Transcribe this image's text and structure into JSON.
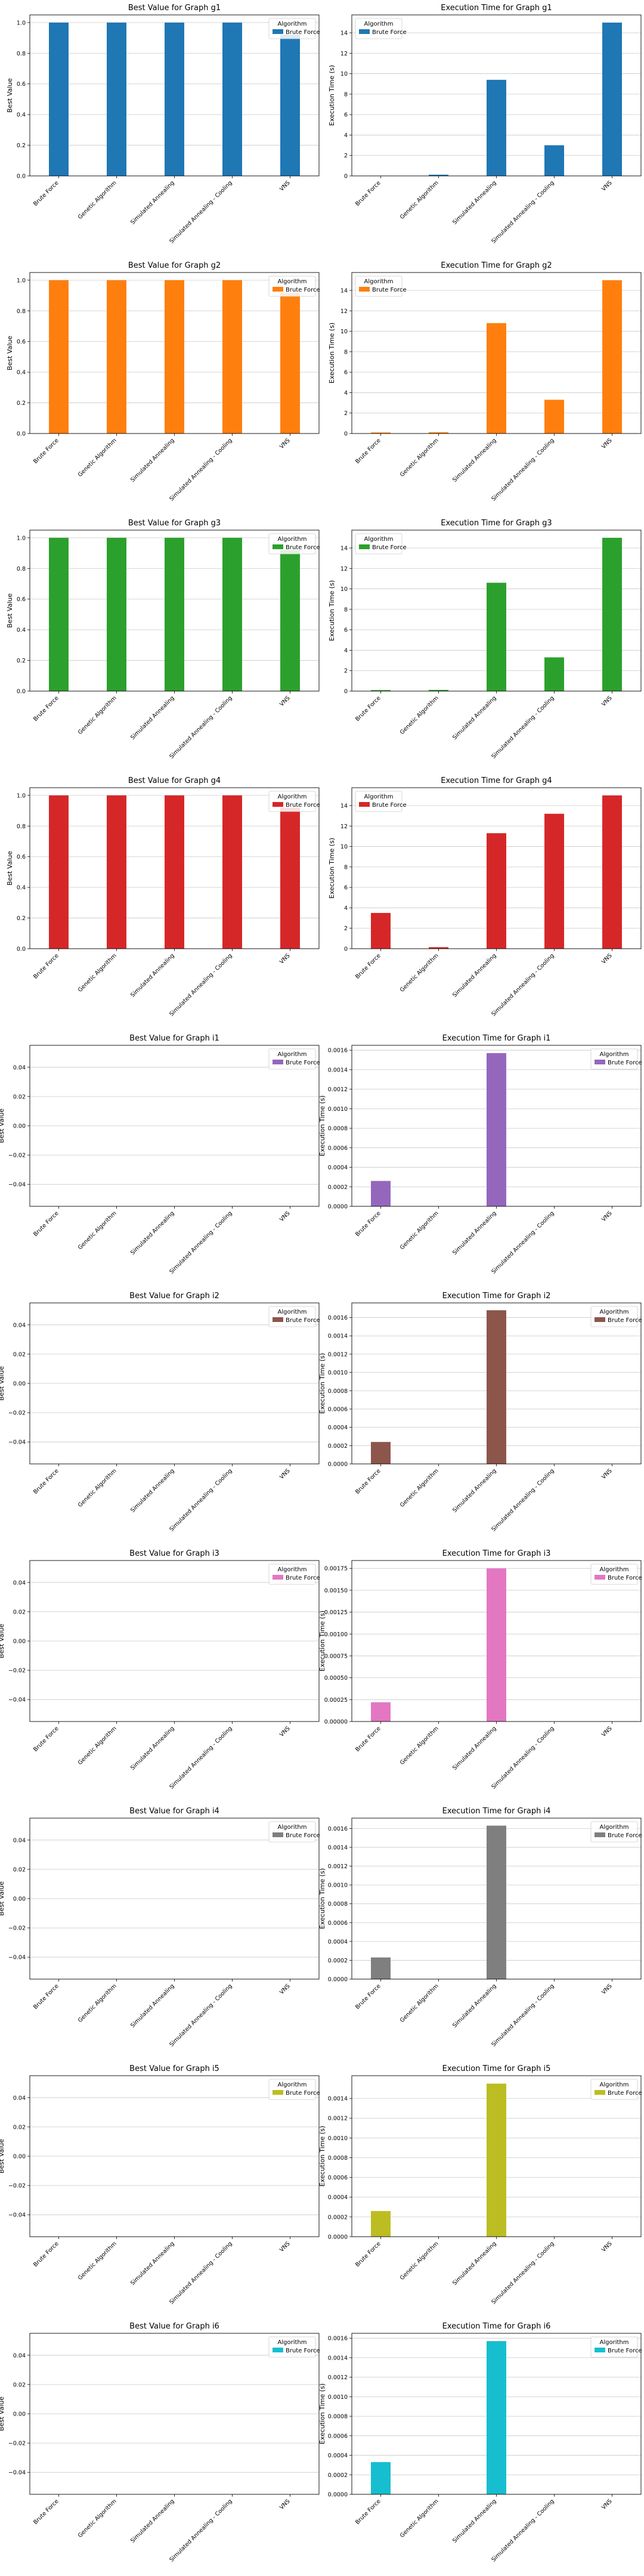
{
  "legend_title": "Algorithm",
  "chart_data": [
    {
      "type": "bar",
      "title": "Best Value for Graph g1",
      "xlabel": "",
      "ylabel": "Best Value",
      "categories": [
        "Brute Force",
        "Genetic Algorithm",
        "Simulated Annealing",
        "Simulated Annealing - Cooling",
        "VNS"
      ],
      "values": [
        1.0,
        1.0,
        1.0,
        1.0,
        0.92
      ],
      "ylim": [
        0,
        1.05
      ],
      "yticks": [
        "0.0",
        "0.2",
        "0.4",
        "0.6",
        "0.8",
        "1.0"
      ],
      "color": "#1f77b4",
      "legend": {
        "title": "Algorithm",
        "entries": [
          "Brute Force"
        ],
        "position": "top-right"
      },
      "grid": true
    },
    {
      "type": "bar",
      "title": "Execution Time for Graph g1",
      "xlabel": "",
      "ylabel": "Execution Time (s)",
      "categories": [
        "Brute Force",
        "Genetic Algorithm",
        "Simulated Annealing",
        "Simulated Annealing - Cooling",
        "VNS"
      ],
      "values": [
        0.02,
        0.12,
        9.4,
        3.0,
        15.0
      ],
      "ylim": [
        0,
        15.75
      ],
      "yticks": [
        "0",
        "2",
        "4",
        "6",
        "8",
        "10",
        "12",
        "14"
      ],
      "color": "#1f77b4",
      "legend": {
        "title": "Algorithm",
        "entries": [
          "Brute Force"
        ],
        "position": "top-left"
      },
      "grid": true
    },
    {
      "type": "bar",
      "title": "Best Value for Graph g2",
      "xlabel": "",
      "ylabel": "Best Value",
      "categories": [
        "Brute Force",
        "Genetic Algorithm",
        "Simulated Annealing",
        "Simulated Annealing - Cooling",
        "VNS"
      ],
      "values": [
        1.0,
        1.0,
        1.0,
        1.0,
        0.92
      ],
      "ylim": [
        0,
        1.05
      ],
      "yticks": [
        "0.0",
        "0.2",
        "0.4",
        "0.6",
        "0.8",
        "1.0"
      ],
      "color": "#ff7f0e",
      "legend": {
        "title": "Algorithm",
        "entries": [
          "Brute Force"
        ],
        "position": "top-right"
      },
      "grid": true
    },
    {
      "type": "bar",
      "title": "Execution Time for Graph g2",
      "xlabel": "",
      "ylabel": "Execution Time (s)",
      "categories": [
        "Brute Force",
        "Genetic Algorithm",
        "Simulated Annealing",
        "Simulated Annealing - Cooling",
        "VNS"
      ],
      "values": [
        0.1,
        0.12,
        10.8,
        3.3,
        15.0
      ],
      "ylim": [
        0,
        15.75
      ],
      "yticks": [
        "0",
        "2",
        "4",
        "6",
        "8",
        "10",
        "12",
        "14"
      ],
      "color": "#ff7f0e",
      "legend": {
        "title": "Algorithm",
        "entries": [
          "Brute Force"
        ],
        "position": "top-left"
      },
      "grid": true
    },
    {
      "type": "bar",
      "title": "Best Value for Graph g3",
      "xlabel": "",
      "ylabel": "Best Value",
      "categories": [
        "Brute Force",
        "Genetic Algorithm",
        "Simulated Annealing",
        "Simulated Annealing - Cooling",
        "VNS"
      ],
      "values": [
        1.0,
        1.0,
        1.0,
        1.0,
        0.92
      ],
      "ylim": [
        0,
        1.05
      ],
      "yticks": [
        "0.0",
        "0.2",
        "0.4",
        "0.6",
        "0.8",
        "1.0"
      ],
      "color": "#2ca02c",
      "legend": {
        "title": "Algorithm",
        "entries": [
          "Brute Force"
        ],
        "position": "top-right"
      },
      "grid": true
    },
    {
      "type": "bar",
      "title": "Execution Time for Graph g3",
      "xlabel": "",
      "ylabel": "Execution Time (s)",
      "categories": [
        "Brute Force",
        "Genetic Algorithm",
        "Simulated Annealing",
        "Simulated Annealing - Cooling",
        "VNS"
      ],
      "values": [
        0.1,
        0.12,
        10.6,
        3.3,
        15.0
      ],
      "ylim": [
        0,
        15.75
      ],
      "yticks": [
        "0",
        "2",
        "4",
        "6",
        "8",
        "10",
        "12",
        "14"
      ],
      "color": "#2ca02c",
      "legend": {
        "title": "Algorithm",
        "entries": [
          "Brute Force"
        ],
        "position": "top-left"
      },
      "grid": true
    },
    {
      "type": "bar",
      "title": "Best Value for Graph g4",
      "xlabel": "",
      "ylabel": "Best Value",
      "categories": [
        "Brute Force",
        "Genetic Algorithm",
        "Simulated Annealing",
        "Simulated Annealing - Cooling",
        "VNS"
      ],
      "values": [
        1.0,
        1.0,
        1.0,
        1.0,
        0.92
      ],
      "ylim": [
        0,
        1.05
      ],
      "yticks": [
        "0.0",
        "0.2",
        "0.4",
        "0.6",
        "0.8",
        "1.0"
      ],
      "color": "#d62728",
      "legend": {
        "title": "Algorithm",
        "entries": [
          "Brute Force"
        ],
        "position": "top-right"
      },
      "grid": true
    },
    {
      "type": "bar",
      "title": "Execution Time for Graph g4",
      "xlabel": "",
      "ylabel": "Execution Time (s)",
      "categories": [
        "Brute Force",
        "Genetic Algorithm",
        "Simulated Annealing",
        "Simulated Annealing - Cooling",
        "VNS"
      ],
      "values": [
        3.5,
        0.15,
        11.3,
        13.2,
        15.0
      ],
      "ylim": [
        0,
        15.75
      ],
      "yticks": [
        "0",
        "2",
        "4",
        "6",
        "8",
        "10",
        "12",
        "14"
      ],
      "color": "#d62728",
      "legend": {
        "title": "Algorithm",
        "entries": [
          "Brute Force"
        ],
        "position": "top-left"
      },
      "grid": true
    },
    {
      "type": "bar",
      "title": "Best Value for Graph i1",
      "xlabel": "",
      "ylabel": "Best Value",
      "categories": [
        "Brute Force",
        "Genetic Algorithm",
        "Simulated Annealing",
        "Simulated Annealing - Cooling",
        "VNS"
      ],
      "values": [
        0,
        0,
        0,
        0,
        0
      ],
      "ylim": [
        -0.055,
        0.055
      ],
      "yticks": [
        "−0.04",
        "−0.02",
        "0.00",
        "0.02",
        "0.04"
      ],
      "color": "#9467bd",
      "legend": {
        "title": "Algorithm",
        "entries": [
          "Brute Force"
        ],
        "position": "top-right"
      },
      "grid": true
    },
    {
      "type": "bar",
      "title": "Execution Time for Graph i1",
      "xlabel": "",
      "ylabel": "Execution Time (s)",
      "categories": [
        "Brute Force",
        "Genetic Algorithm",
        "Simulated Annealing",
        "Simulated Annealing - Cooling",
        "VNS"
      ],
      "values": [
        0.00026,
        0,
        0.00157,
        0,
        0
      ],
      "ylim": [
        0,
        0.00165
      ],
      "yticks": [
        "0.0000",
        "0.0002",
        "0.0004",
        "0.0006",
        "0.0008",
        "0.0010",
        "0.0012",
        "0.0014",
        "0.0016"
      ],
      "color": "#9467bd",
      "legend": {
        "title": "Algorithm",
        "entries": [
          "Brute Force"
        ],
        "position": "top-right"
      },
      "grid": true
    },
    {
      "type": "bar",
      "title": "Best Value for Graph i2",
      "xlabel": "",
      "ylabel": "Best Value",
      "categories": [
        "Brute Force",
        "Genetic Algorithm",
        "Simulated Annealing",
        "Simulated Annealing - Cooling",
        "VNS"
      ],
      "values": [
        0,
        0,
        0,
        0,
        0
      ],
      "ylim": [
        -0.055,
        0.055
      ],
      "yticks": [
        "−0.04",
        "−0.02",
        "0.00",
        "0.02",
        "0.04"
      ],
      "color": "#8c564b",
      "legend": {
        "title": "Algorithm",
        "entries": [
          "Brute Force"
        ],
        "position": "top-right"
      },
      "grid": true
    },
    {
      "type": "bar",
      "title": "Execution Time for Graph i2",
      "xlabel": "",
      "ylabel": "Execution Time (s)",
      "categories": [
        "Brute Force",
        "Genetic Algorithm",
        "Simulated Annealing",
        "Simulated Annealing - Cooling",
        "VNS"
      ],
      "values": [
        0.00024,
        0,
        0.00168,
        0,
        0
      ],
      "ylim": [
        0,
        0.00176
      ],
      "yticks": [
        "0.0000",
        "0.0002",
        "0.0004",
        "0.0006",
        "0.0008",
        "0.0010",
        "0.0012",
        "0.0014",
        "0.0016"
      ],
      "color": "#8c564b",
      "legend": {
        "title": "Algorithm",
        "entries": [
          "Brute Force"
        ],
        "position": "top-right"
      },
      "grid": true
    },
    {
      "type": "bar",
      "title": "Best Value for Graph i3",
      "xlabel": "",
      "ylabel": "Best Value",
      "categories": [
        "Brute Force",
        "Genetic Algorithm",
        "Simulated Annealing",
        "Simulated Annealing - Cooling",
        "VNS"
      ],
      "values": [
        0,
        0,
        0,
        0,
        0
      ],
      "ylim": [
        -0.055,
        0.055
      ],
      "yticks": [
        "−0.04",
        "−0.02",
        "0.00",
        "0.02",
        "0.04"
      ],
      "color": "#e377c2",
      "legend": {
        "title": "Algorithm",
        "entries": [
          "Brute Force"
        ],
        "position": "top-right"
      },
      "grid": true
    },
    {
      "type": "bar",
      "title": "Execution Time for Graph i3",
      "xlabel": "",
      "ylabel": "Execution Time (s)",
      "categories": [
        "Brute Force",
        "Genetic Algorithm",
        "Simulated Annealing",
        "Simulated Annealing - Cooling",
        "VNS"
      ],
      "values": [
        0.00022,
        0,
        0.00175,
        0,
        0
      ],
      "ylim": [
        0,
        0.00184
      ],
      "yticks": [
        "0.00000",
        "0.00025",
        "0.00050",
        "0.00075",
        "0.00100",
        "0.00125",
        "0.00150",
        "0.00175"
      ],
      "color": "#e377c2",
      "legend": {
        "title": "Algorithm",
        "entries": [
          "Brute Force"
        ],
        "position": "top-right"
      },
      "grid": true
    },
    {
      "type": "bar",
      "title": "Best Value for Graph i4",
      "xlabel": "",
      "ylabel": "Best Value",
      "categories": [
        "Brute Force",
        "Genetic Algorithm",
        "Simulated Annealing",
        "Simulated Annealing - Cooling",
        "VNS"
      ],
      "values": [
        0,
        0,
        0,
        0,
        0
      ],
      "ylim": [
        -0.055,
        0.055
      ],
      "yticks": [
        "−0.04",
        "−0.02",
        "0.00",
        "0.02",
        "0.04"
      ],
      "color": "#7f7f7f",
      "legend": {
        "title": "Algorithm",
        "entries": [
          "Brute Force"
        ],
        "position": "top-right"
      },
      "grid": true
    },
    {
      "type": "bar",
      "title": "Execution Time for Graph i4",
      "xlabel": "",
      "ylabel": "Execution Time (s)",
      "categories": [
        "Brute Force",
        "Genetic Algorithm",
        "Simulated Annealing",
        "Simulated Annealing - Cooling",
        "VNS"
      ],
      "values": [
        0.00023,
        0,
        0.00163,
        0,
        0
      ],
      "ylim": [
        0,
        0.00171
      ],
      "yticks": [
        "0.0000",
        "0.0002",
        "0.0004",
        "0.0006",
        "0.0008",
        "0.0010",
        "0.0012",
        "0.0014",
        "0.0016"
      ],
      "color": "#7f7f7f",
      "legend": {
        "title": "Algorithm",
        "entries": [
          "Brute Force"
        ],
        "position": "top-right"
      },
      "grid": true
    },
    {
      "type": "bar",
      "title": "Best Value for Graph i5",
      "xlabel": "",
      "ylabel": "Best Value",
      "categories": [
        "Brute Force",
        "Genetic Algorithm",
        "Simulated Annealing",
        "Simulated Annealing - Cooling",
        "VNS"
      ],
      "values": [
        0,
        0,
        0,
        0,
        0
      ],
      "ylim": [
        -0.055,
        0.055
      ],
      "yticks": [
        "−0.04",
        "−0.02",
        "0.00",
        "0.02",
        "0.04"
      ],
      "color": "#bcbd22",
      "legend": {
        "title": "Algorithm",
        "entries": [
          "Brute Force"
        ],
        "position": "top-right"
      },
      "grid": true
    },
    {
      "type": "bar",
      "title": "Execution Time for Graph i5",
      "xlabel": "",
      "ylabel": "Execution Time (s)",
      "categories": [
        "Brute Force",
        "Genetic Algorithm",
        "Simulated Annealing",
        "Simulated Annealing - Cooling",
        "VNS"
      ],
      "values": [
        0.00026,
        0,
        0.00155,
        0,
        0
      ],
      "ylim": [
        0,
        0.00163
      ],
      "yticks": [
        "0.0000",
        "0.0002",
        "0.0004",
        "0.0006",
        "0.0008",
        "0.0010",
        "0.0012",
        "0.0014"
      ],
      "color": "#bcbd22",
      "legend": {
        "title": "Algorithm",
        "entries": [
          "Brute Force"
        ],
        "position": "top-right"
      },
      "grid": true
    },
    {
      "type": "bar",
      "title": "Best Value for Graph i6",
      "xlabel": "",
      "ylabel": "Best Value",
      "categories": [
        "Brute Force",
        "Genetic Algorithm",
        "Simulated Annealing",
        "Simulated Annealing - Cooling",
        "VNS"
      ],
      "values": [
        0,
        0,
        0,
        0,
        0
      ],
      "ylim": [
        -0.055,
        0.055
      ],
      "yticks": [
        "−0.04",
        "−0.02",
        "0.00",
        "0.02",
        "0.04"
      ],
      "color": "#17becf",
      "legend": {
        "title": "Algorithm",
        "entries": [
          "Brute Force"
        ],
        "position": "top-right"
      },
      "grid": true
    },
    {
      "type": "bar",
      "title": "Execution Time for Graph i6",
      "xlabel": "",
      "ylabel": "Execution Time (s)",
      "categories": [
        "Brute Force",
        "Genetic Algorithm",
        "Simulated Annealing",
        "Simulated Annealing - Cooling",
        "VNS"
      ],
      "values": [
        0.00033,
        0,
        0.00157,
        0,
        0
      ],
      "ylim": [
        0,
        0.00165
      ],
      "yticks": [
        "0.0000",
        "0.0002",
        "0.0004",
        "0.0006",
        "0.0008",
        "0.0010",
        "0.0012",
        "0.0014",
        "0.0016"
      ],
      "color": "#17becf",
      "legend": {
        "title": "Algorithm",
        "entries": [
          "Brute Force"
        ],
        "position": "top-right"
      },
      "grid": true
    }
  ]
}
